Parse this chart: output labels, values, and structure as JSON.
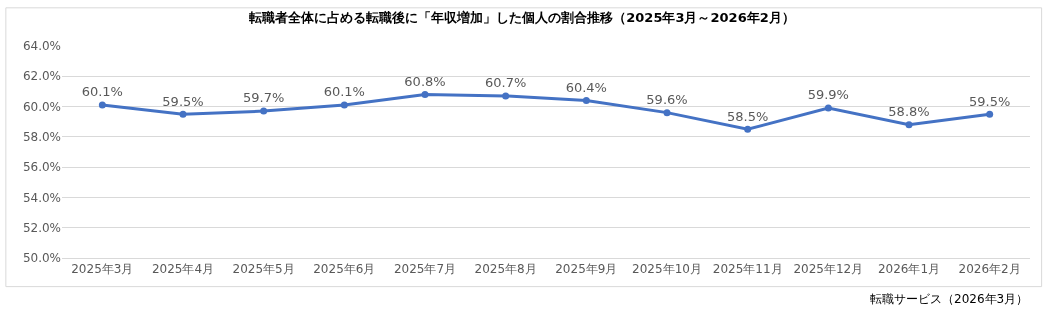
{
  "chart_data": {
    "type": "line",
    "title": "転職者全体に占める転職後に「年収増加」した個人の割合推移（2025年3月～2026年2月）",
    "categories": [
      "2025年3月",
      "2025年4月",
      "2025年5月",
      "2025年6月",
      "2025年7月",
      "2025年8月",
      "2025年9月",
      "2025年10月",
      "2025年11月",
      "2025年12月",
      "2026年1月",
      "2026年2月"
    ],
    "values": [
      60.1,
      59.5,
      59.7,
      60.1,
      60.8,
      60.7,
      60.4,
      59.6,
      58.5,
      59.9,
      58.8,
      59.5
    ],
    "value_labels": [
      "60.1%",
      "59.5%",
      "59.7%",
      "60.1%",
      "60.8%",
      "60.7%",
      "60.4%",
      "59.6%",
      "58.5%",
      "59.9%",
      "58.8%",
      "59.5%"
    ],
    "color": "#4472c4",
    "marker": "circle",
    "line_style": "solid",
    "grid": "y",
    "ylim": [
      50,
      64
    ],
    "yticks": [
      {
        "value": 50,
        "label": "50.0%"
      },
      {
        "value": 52,
        "label": "52.0%"
      },
      {
        "value": 54,
        "label": "54.0%"
      },
      {
        "value": 56,
        "label": "56.0%"
      },
      {
        "value": 58,
        "label": "58.0%"
      },
      {
        "value": 60,
        "label": "60.0%"
      },
      {
        "value": 62,
        "label": "62.0%"
      },
      {
        "value": 64,
        "label": "64.0%"
      }
    ],
    "annotations": [
      "転職サービス（2026年3月）"
    ]
  }
}
